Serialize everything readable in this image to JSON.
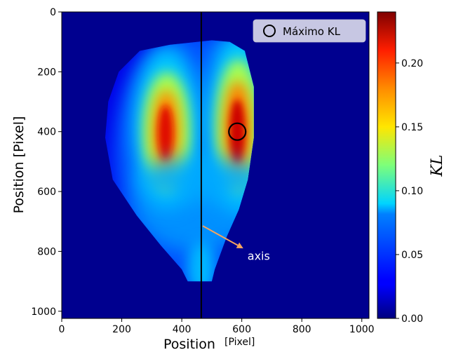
{
  "chart_data": {
    "type": "heatmap",
    "title": "",
    "xlabel": "Position",
    "xlabel_unit": "[Pixel]",
    "ylabel": "Position [Pixel]",
    "xlim": [
      0,
      1024
    ],
    "ylim": [
      1024,
      0
    ],
    "xticks": [
      0,
      200,
      400,
      600,
      800,
      1000
    ],
    "yticks": [
      0,
      200,
      400,
      600,
      800,
      1000
    ],
    "colormap": "jet",
    "colorbar": {
      "label": "KL",
      "range": [
        0.0,
        0.24
      ],
      "ticks": [
        "0.00",
        "0.05",
        "0.10",
        "0.15",
        "0.20"
      ],
      "tick_values": [
        0.0,
        0.05,
        0.1,
        0.15,
        0.2
      ]
    },
    "vertical_line": {
      "x": 465,
      "color": "#000000"
    },
    "maximum": {
      "x": 585,
      "y": 400,
      "value": 0.24
    },
    "hot_spots": [
      {
        "x": 345,
        "y": 390,
        "value": 0.21
      },
      {
        "x": 585,
        "y": 400,
        "value": 0.24
      }
    ],
    "legend": {
      "entries": [
        "Máximo KL"
      ],
      "position": "top-right"
    },
    "annotation": {
      "text": "axis",
      "x": 605,
      "y": 800,
      "arrow_from": [
        470,
        715
      ],
      "arrow_to": [
        605,
        790
      ],
      "arrow_color": "#f4a460"
    }
  }
}
